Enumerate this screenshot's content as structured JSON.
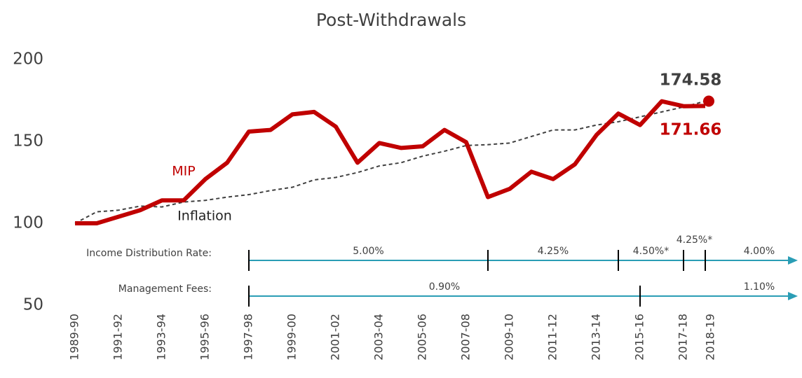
{
  "chart_data": {
    "type": "line",
    "title": "Post-Withdrawals",
    "categories": [
      "1989-90",
      null,
      "1991-92",
      null,
      "1993-94",
      null,
      "1995-96",
      null,
      "1997-98",
      null,
      "1999-00",
      null,
      "2001-02",
      null,
      "2003-04",
      null,
      "2005-06",
      null,
      "2007-08",
      null,
      "2009-10",
      null,
      "2011-12",
      null,
      "2013-14",
      null,
      "2015-16",
      null,
      "2017-18",
      "2018-19"
    ],
    "series": [
      {
        "name": "MIP",
        "color": "#c00000",
        "values": [
          100,
          100,
          104,
          108,
          114,
          114,
          127,
          137,
          156,
          157,
          166.5,
          168,
          159,
          137,
          149,
          146,
          147,
          157,
          149.5,
          116,
          121,
          131.5,
          127,
          136,
          154,
          167,
          160,
          174.5,
          171.5,
          171.66
        ]
      },
      {
        "name": "Inflation",
        "color": "#404040",
        "values": [
          100,
          107,
          108,
          110.5,
          110,
          113,
          114,
          116,
          117.5,
          120,
          122,
          126.5,
          128,
          131,
          135,
          137,
          141,
          144,
          147.5,
          148,
          149,
          153,
          157,
          157,
          160,
          162,
          165,
          168,
          171,
          174.58
        ]
      }
    ],
    "ylim": [
      50,
      200
    ],
    "yticks": [
      50,
      100,
      150,
      200
    ],
    "rows": [
      {
        "label": "Income Distribution Rate:",
        "periods": [
          {
            "start": "1997-98",
            "rate": "5.00%"
          },
          {
            "start": "2008-09",
            "rate": "4.25%"
          },
          {
            "start": "2014-15",
            "rate": "4.50%*"
          },
          {
            "start": "2017-18",
            "rate": "4.25%*"
          },
          {
            "start": "2018-19",
            "rate": "4.00%"
          }
        ]
      },
      {
        "label": "Management Fees:",
        "periods": [
          {
            "start": "1997-98",
            "rate": "0.90%"
          },
          {
            "start": "2015-16",
            "rate": "1.10%"
          }
        ]
      }
    ],
    "row_color": "#2a9db5"
  }
}
